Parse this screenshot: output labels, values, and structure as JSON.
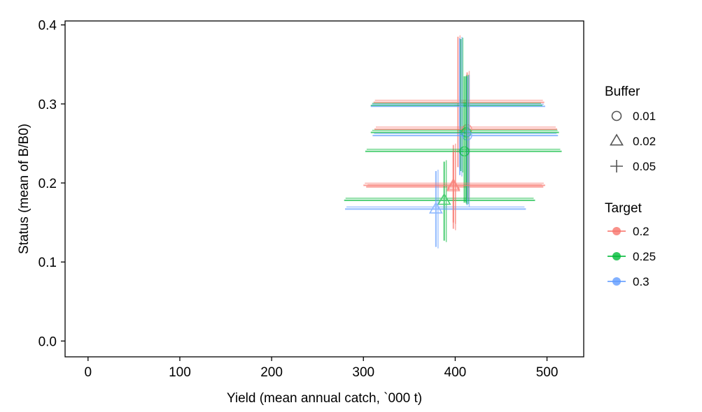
{
  "chart_data": {
    "type": "scatter",
    "xlabel": "Yield (mean annual catch, `000 t)",
    "ylabel": "Status (mean of B/B0)",
    "xlim": [
      -25,
      540
    ],
    "ylim": [
      -0.02,
      0.405
    ],
    "x_ticks": [
      0,
      100,
      200,
      300,
      400,
      500
    ],
    "y_ticks": [
      0.0,
      0.1,
      0.2,
      0.3,
      0.4
    ],
    "x_tick_labels": [
      "0",
      "100",
      "200",
      "300",
      "400",
      "500"
    ],
    "y_tick_labels": [
      "0.0",
      "0.1",
      "0.2",
      "0.3",
      "0.4"
    ],
    "grid": false,
    "legend_placement": "right",
    "legends": [
      {
        "title": "Buffer",
        "entries": [
          {
            "label": "0.01",
            "shape": "circle"
          },
          {
            "label": "0.02",
            "shape": "triangle"
          },
          {
            "label": "0.05",
            "shape": "plus"
          }
        ]
      },
      {
        "title": "Target",
        "entries": [
          {
            "label": "0.2",
            "color": "#F8766D"
          },
          {
            "label": "0.25",
            "color": "#00BA38"
          },
          {
            "label": "0.3",
            "color": "#619CFF"
          }
        ]
      }
    ],
    "points": [
      {
        "target": "0.2",
        "buffer": "0.02",
        "x": 398,
        "y": 0.195,
        "x_err": [
          303,
          496
        ],
        "y_err": [
          0.142,
          0.248
        ]
      },
      {
        "target": "0.25",
        "buffer": "0.02",
        "x": 388,
        "y": 0.178,
        "x_err": [
          279,
          487
        ],
        "y_err": [
          0.127,
          0.227
        ]
      },
      {
        "target": "0.3",
        "buffer": "0.02",
        "x": 379,
        "y": 0.167,
        "x_err": [
          280,
          477
        ],
        "y_err": [
          0.119,
          0.215
        ]
      },
      {
        "target": "0.2",
        "buffer": "0.05",
        "x": 403,
        "y": 0.302,
        "x_err": [
          311,
          497
        ],
        "y_err": [
          0.22,
          0.385
        ]
      },
      {
        "target": "0.25",
        "buffer": "0.05",
        "x": 406,
        "y": 0.298,
        "x_err": [
          308,
          495
        ],
        "y_err": [
          0.215,
          0.382
        ]
      },
      {
        "target": "0.3",
        "buffer": "0.05",
        "x": 405,
        "y": 0.297,
        "x_err": [
          308,
          498
        ],
        "y_err": [
          0.21,
          0.383
        ]
      },
      {
        "target": "0.2",
        "buffer": "0.01",
        "x": 413,
        "y": 0.268,
        "x_err": [
          312,
          511
        ],
        "y_err": [
          0.18,
          0.34
        ]
      },
      {
        "target": "0.25",
        "buffer": "0.01",
        "x": 412,
        "y": 0.264,
        "x_err": [
          308,
          513
        ],
        "y_err": [
          0.175,
          0.335
        ]
      },
      {
        "target": "0.3",
        "buffer": "0.01",
        "x": 413,
        "y": 0.26,
        "x_err": [
          310,
          512
        ],
        "y_err": [
          0.172,
          0.335
        ]
      },
      {
        "target": "0.25",
        "buffer": "0.01",
        "x": 410,
        "y": 0.24,
        "x_err": [
          302,
          516
        ],
        "y_err": [
          0.175,
          0.335
        ]
      },
      {
        "target": "0.2",
        "buffer": "0.02",
        "x": 398,
        "y": 0.197,
        "x_err": [
          300,
          498
        ],
        "y_err": [
          0.15,
          0.24
        ]
      }
    ]
  }
}
